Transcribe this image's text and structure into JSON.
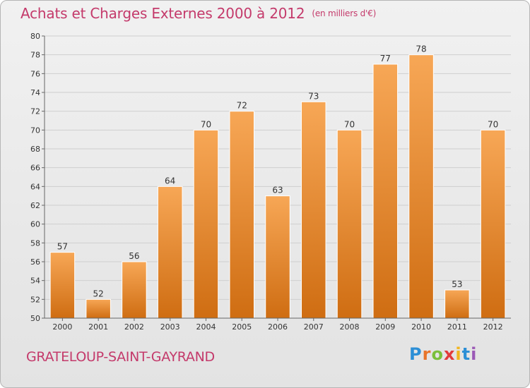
{
  "header": {
    "title": "Achats et Charges Externes 2000 à 2012",
    "unit": "(en milliers d'€)"
  },
  "footer": {
    "commune": "GRATELOUP-SAINT-GAYRAND",
    "brand_letters": [
      "P",
      "r",
      "o",
      "x",
      "i",
      "t",
      "i"
    ],
    "brand_colors": [
      "#2c8fd6",
      "#e8742a",
      "#7bbf3a",
      "#e23b3b",
      "#f2b51d",
      "#2c8fd6",
      "#9b59b6"
    ]
  },
  "colors": {
    "bar_top": "#f7a756",
    "bar_bottom": "#cf6d12",
    "text_accent": "#c43a6b"
  },
  "chart_data": {
    "type": "bar",
    "title": "Achats et Charges Externes 2000 à 2012",
    "categories": [
      "2000",
      "2001",
      "2002",
      "2003",
      "2004",
      "2005",
      "2006",
      "2007",
      "2008",
      "2009",
      "2010",
      "2011",
      "2012"
    ],
    "values": [
      57,
      52,
      56,
      64,
      70,
      72,
      63,
      73,
      70,
      77,
      78,
      53,
      70
    ],
    "ylim": [
      50,
      80
    ],
    "yticks": [
      50,
      52,
      54,
      56,
      58,
      60,
      62,
      64,
      66,
      68,
      70,
      72,
      74,
      76,
      78,
      80
    ],
    "grid": true,
    "legend": "none"
  }
}
